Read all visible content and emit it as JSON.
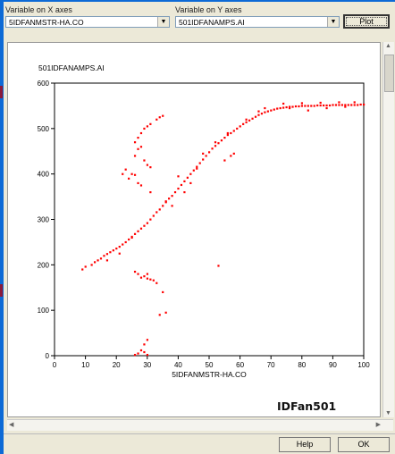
{
  "x_axis_label": "Variable on X axes",
  "y_axis_label": "Variable on Y axes",
  "x_variable_value": "5IDFANMSTR-HA.CO",
  "y_variable_value": "501IDFANAMPS.AI",
  "buttons": {
    "plot": "Plot",
    "help": "Help",
    "ok": "OK"
  },
  "annotation": "IDFan501",
  "colors": {
    "points": "#ff0000",
    "window": "#ece9d8",
    "desktop": "#0d6ad6"
  },
  "icons": {
    "dropdown": "chevron-down-icon",
    "scroll": "scroll-arrow-icon"
  },
  "chart_data": {
    "type": "scatter",
    "title": "501IDFANAMPS.AI",
    "xlabel": "5IDFANMSTR-HA.CO",
    "ylabel": "",
    "xlim": [
      0,
      100
    ],
    "ylim": [
      0,
      600
    ],
    "x_ticks": [
      0,
      10,
      20,
      30,
      40,
      50,
      60,
      70,
      80,
      90,
      100
    ],
    "y_ticks": [
      0,
      100,
      200,
      300,
      400,
      500,
      600
    ],
    "grid": false,
    "series": [
      {
        "color": "#ff0000",
        "points": [
          [
            9,
            190
          ],
          [
            10,
            196
          ],
          [
            12,
            200
          ],
          [
            13,
            206
          ],
          [
            14,
            210
          ],
          [
            15,
            214
          ],
          [
            16,
            220
          ],
          [
            17,
            224
          ],
          [
            18,
            228
          ],
          [
            19,
            232
          ],
          [
            20,
            236
          ],
          [
            21,
            240
          ],
          [
            22,
            245
          ],
          [
            23,
            250
          ],
          [
            24,
            256
          ],
          [
            25,
            262
          ],
          [
            26,
            268
          ],
          [
            27,
            274
          ],
          [
            28,
            280
          ],
          [
            29,
            286
          ],
          [
            30,
            292
          ],
          [
            31,
            300
          ],
          [
            32,
            308
          ],
          [
            33,
            316
          ],
          [
            34,
            322
          ],
          [
            35,
            330
          ],
          [
            36,
            338
          ],
          [
            37,
            346
          ],
          [
            38,
            352
          ],
          [
            39,
            360
          ],
          [
            40,
            368
          ],
          [
            41,
            376
          ],
          [
            42,
            384
          ],
          [
            43,
            392
          ],
          [
            44,
            400
          ],
          [
            45,
            408
          ],
          [
            46,
            416
          ],
          [
            47,
            424
          ],
          [
            48,
            432
          ],
          [
            49,
            440
          ],
          [
            50,
            448
          ],
          [
            51,
            456
          ],
          [
            52,
            462
          ],
          [
            53,
            468
          ],
          [
            54,
            474
          ],
          [
            55,
            480
          ],
          [
            56,
            486
          ],
          [
            57,
            490
          ],
          [
            58,
            495
          ],
          [
            59,
            500
          ],
          [
            60,
            505
          ],
          [
            61,
            510
          ],
          [
            62,
            514
          ],
          [
            63,
            518
          ],
          [
            64,
            522
          ],
          [
            65,
            526
          ],
          [
            66,
            530
          ],
          [
            67,
            533
          ],
          [
            68,
            536
          ],
          [
            69,
            538
          ],
          [
            70,
            540
          ],
          [
            71,
            542
          ],
          [
            72,
            544
          ],
          [
            73,
            545
          ],
          [
            74,
            546
          ],
          [
            75,
            547
          ],
          [
            76,
            548
          ],
          [
            77,
            548
          ],
          [
            78,
            549
          ],
          [
            79,
            549
          ],
          [
            80,
            550
          ],
          [
            81,
            550
          ],
          [
            82,
            550
          ],
          [
            83,
            550
          ],
          [
            84,
            550
          ],
          [
            85,
            551
          ],
          [
            86,
            551
          ],
          [
            87,
            551
          ],
          [
            88,
            551
          ],
          [
            89,
            551
          ],
          [
            90,
            552
          ],
          [
            91,
            552
          ],
          [
            92,
            552
          ],
          [
            93,
            552
          ],
          [
            94,
            552
          ],
          [
            95,
            552
          ],
          [
            96,
            552
          ],
          [
            97,
            552
          ],
          [
            98,
            552
          ],
          [
            99,
            553
          ],
          [
            100,
            553
          ],
          [
            26,
            470
          ],
          [
            27,
            480
          ],
          [
            28,
            490
          ],
          [
            29,
            500
          ],
          [
            30,
            505
          ],
          [
            31,
            510
          ],
          [
            27,
            455
          ],
          [
            28,
            460
          ],
          [
            26,
            440
          ],
          [
            29,
            430
          ],
          [
            30,
            420
          ],
          [
            31,
            415
          ],
          [
            25,
            400
          ],
          [
            26,
            398
          ],
          [
            24,
            390
          ],
          [
            22,
            400
          ],
          [
            23,
            410
          ],
          [
            27,
            380
          ],
          [
            28,
            375
          ],
          [
            31,
            360
          ],
          [
            33,
            520
          ],
          [
            34,
            525
          ],
          [
            35,
            528
          ],
          [
            29,
            175
          ],
          [
            30,
            170
          ],
          [
            31,
            168
          ],
          [
            28,
            172
          ],
          [
            32,
            166
          ],
          [
            27,
            180
          ],
          [
            26,
            185
          ],
          [
            35,
            140
          ],
          [
            36,
            95
          ],
          [
            34,
            90
          ],
          [
            30,
            35
          ],
          [
            29,
            25
          ],
          [
            28,
            12
          ],
          [
            27,
            5
          ],
          [
            26,
            2
          ],
          [
            30,
            2
          ],
          [
            29,
            8
          ],
          [
            53,
            198
          ],
          [
            46,
            412
          ],
          [
            55,
            430
          ],
          [
            57,
            440
          ],
          [
            58,
            445
          ],
          [
            33,
            160
          ],
          [
            30,
            180
          ],
          [
            25,
            260
          ],
          [
            21,
            225
          ],
          [
            17,
            210
          ],
          [
            36,
            340
          ],
          [
            38,
            330
          ],
          [
            42,
            360
          ],
          [
            44,
            380
          ],
          [
            62,
            520
          ],
          [
            66,
            538
          ],
          [
            68,
            545
          ],
          [
            74,
            555
          ],
          [
            80,
            556
          ],
          [
            86,
            557
          ],
          [
            92,
            558
          ],
          [
            97,
            558
          ],
          [
            76,
            545
          ],
          [
            82,
            540
          ],
          [
            88,
            545
          ],
          [
            94,
            548
          ],
          [
            40,
            395
          ],
          [
            48,
            445
          ],
          [
            52,
            470
          ],
          [
            56,
            490
          ]
        ]
      }
    ]
  }
}
